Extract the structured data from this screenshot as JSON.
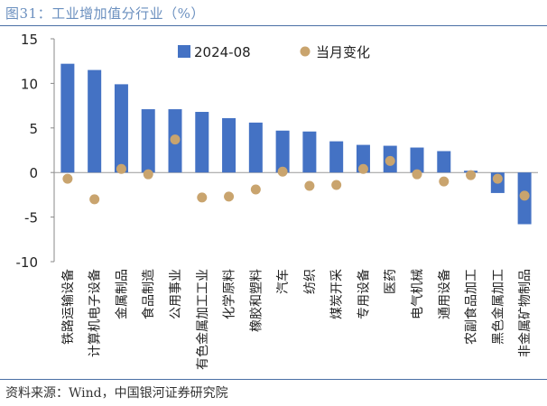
{
  "title": "图31：工业增加值分行业（%）",
  "source": "资料来源：Wind，中国银河证券研究院",
  "colors": {
    "bar": "#4472c4",
    "dot": "#c9a46e",
    "rule": "#4a6fa5",
    "title": "#6a8fbf"
  },
  "chart_data": {
    "type": "bar",
    "title": "",
    "xlabel": "",
    "ylabel": "",
    "ylim": [
      -10,
      15
    ],
    "yticks": [
      -10,
      -5,
      0,
      5,
      10,
      15
    ],
    "grid": false,
    "legend_position": "top-right",
    "categories": [
      "铁路运输设备",
      "计算机电子设备",
      "金属制品",
      "食品制造",
      "公用事业",
      "有色金属加工工业",
      "化学原料",
      "橡胶和塑料",
      "汽车",
      "纺织",
      "煤炭开采",
      "专用设备",
      "医药",
      "电气机械",
      "通用设备",
      "农副食品加工",
      "黑色金属加工",
      "非金属矿物制品"
    ],
    "series": [
      {
        "name": "2024-08",
        "type": "bar",
        "values": [
          12.2,
          11.5,
          9.9,
          7.1,
          7.1,
          6.8,
          6.1,
          5.6,
          4.7,
          4.6,
          3.5,
          3.1,
          3.0,
          2.8,
          2.4,
          0.2,
          -2.3,
          -5.8
        ]
      },
      {
        "name": "当月变化",
        "type": "scatter",
        "values": [
          -0.7,
          -3.0,
          0.4,
          -0.2,
          3.7,
          -2.8,
          -2.7,
          -1.9,
          0.1,
          -1.5,
          -1.4,
          0.4,
          1.3,
          -0.2,
          -1.0,
          -0.3,
          -0.7,
          -2.6
        ]
      }
    ]
  }
}
